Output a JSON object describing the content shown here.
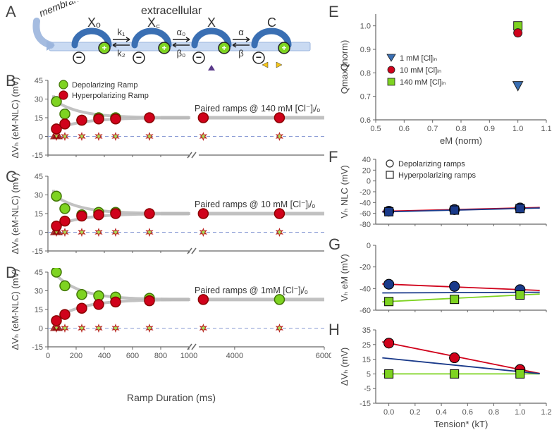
{
  "labels": {
    "A": "A",
    "B": "B",
    "C": "C",
    "D": "D",
    "E": "E",
    "F": "F",
    "G": "G",
    "H": "H"
  },
  "panelA": {
    "membrane_label": "membrane",
    "extracellular_label": "extracellular",
    "states": [
      "Xₒ",
      "X꜀",
      "X",
      "C"
    ],
    "rates": [
      "k₁",
      "k₂",
      "α₀",
      "β₀",
      "α",
      "β"
    ],
    "membrane_color": "#3a6fb3",
    "pos_charge": "+",
    "neg_charge": "−",
    "channel_fill": "#c9daf2"
  },
  "panelsBCD": {
    "y_label": "ΔVₕ (eM-NLC) (mV)",
    "y_range": [
      -15,
      45
    ],
    "y_ticks": [
      -15,
      0,
      15,
      30,
      45
    ],
    "x_range_left": [
      0,
      1000
    ],
    "x_break": [
      1000,
      3200
    ],
    "x_range_right": [
      3200,
      6000
    ],
    "x_ticks_left": [
      0,
      200,
      400,
      600,
      800,
      1000
    ],
    "x_ticks_right": [
      4000,
      6000
    ],
    "x_axis_label": "Ramp Duration (ms)",
    "legend": {
      "dep": "Depolarizing Ramp",
      "hyp": "Hyperpolarizing Ramp"
    },
    "colors": {
      "dep": "#7ed321",
      "dep_stroke": "#417505",
      "hyp": "#d0021b",
      "hyp_stroke": "#8b0000",
      "fit": "#bbbbbb",
      "zero_dash": "#8a9bd4"
    },
    "B": {
      "text": "Paired ramps @ 140 mM [Cl⁻]ᵢ/ₒ",
      "dep_points": [
        [
          60,
          28
        ],
        [
          120,
          18
        ],
        [
          240,
          13
        ],
        [
          360,
          15
        ],
        [
          480,
          15
        ]
      ],
      "hyp_points": [
        [
          60,
          6
        ],
        [
          120,
          10
        ],
        [
          240,
          13
        ],
        [
          360,
          14
        ],
        [
          480,
          14
        ],
        [
          720,
          15
        ],
        [
          3300,
          15
        ],
        [
          5000,
          15
        ]
      ],
      "asymptote": 15,
      "star_x": [
        60,
        120,
        240,
        360,
        480,
        720,
        3300,
        5000
      ]
    },
    "C": {
      "text": "Paired ramps @ 10 mM [Cl⁻]ᵢ/ₒ",
      "dep_points": [
        [
          60,
          29
        ],
        [
          120,
          19
        ],
        [
          240,
          14
        ],
        [
          360,
          16
        ],
        [
          480,
          16
        ]
      ],
      "hyp_points": [
        [
          60,
          5
        ],
        [
          120,
          9
        ],
        [
          240,
          13
        ],
        [
          360,
          14
        ],
        [
          480,
          15
        ],
        [
          720,
          15
        ],
        [
          3300,
          15
        ],
        [
          5000,
          15
        ]
      ],
      "asymptote": 15,
      "star_x": [
        60,
        120,
        240,
        360,
        480,
        720,
        3300,
        5000
      ]
    },
    "D": {
      "text": "Paired ramps @ 1mM [Cl⁻]ᵢ/ₒ",
      "dep_points": [
        [
          60,
          45
        ],
        [
          120,
          34
        ],
        [
          240,
          27
        ],
        [
          360,
          26
        ],
        [
          480,
          25
        ],
        [
          720,
          24
        ]
      ],
      "hyp_points": [
        [
          60,
          6
        ],
        [
          120,
          11
        ],
        [
          240,
          16
        ],
        [
          360,
          19
        ],
        [
          480,
          21
        ],
        [
          720,
          22
        ],
        [
          3300,
          23
        ]
      ],
      "dep_right": [
        [
          5000,
          23
        ]
      ],
      "asymptote": 23,
      "star_x": [
        60,
        120,
        240,
        360,
        480,
        720,
        3300,
        5000
      ]
    }
  },
  "panelE": {
    "y_label": "Qmax (norm)",
    "x_label": "eM (norm)",
    "y_range": [
      0.6,
      1.05
    ],
    "y_ticks": [
      0.6,
      0.7,
      0.8,
      0.9,
      1.0
    ],
    "x_range": [
      0.5,
      1.1
    ],
    "x_ticks": [
      0.5,
      0.6,
      0.7,
      0.8,
      0.9,
      1.0,
      1.1
    ],
    "legend": [
      {
        "label": "1 mM [Cl]ᵢₙ",
        "marker": "tri",
        "color": "#3a6fb3"
      },
      {
        "label": "10 mM [Cl]ᵢₙ",
        "marker": "circle",
        "color": "#d0021b"
      },
      {
        "label": "140 mM [Cl]ᵢₙ",
        "marker": "square",
        "color": "#7ed321"
      }
    ],
    "points_tri": [
      [
        1.0,
        0.745
      ]
    ],
    "points_circ": [
      [
        1.0,
        0.97
      ]
    ],
    "points_sq": [
      [
        1.0,
        1.0
      ]
    ]
  },
  "panelsFGH": {
    "x_label": "Tension* (kT)",
    "x_range": [
      -0.1,
      1.2
    ],
    "x_ticks": [
      0.0,
      0.2,
      0.4,
      0.6,
      0.8,
      1.0,
      1.2
    ],
    "legend": [
      {
        "label": "Depolarizing ramps",
        "marker": "circle"
      },
      {
        "label": "Hyperpolarizing ramps",
        "marker": "square"
      }
    ],
    "F": {
      "y_label": "Vₕ NLC (mV)",
      "y_range": [
        -80,
        40
      ],
      "y_ticks": [
        -80,
        -60,
        -40,
        -20,
        0,
        20,
        40
      ],
      "dep": [
        [
          0,
          -56
        ],
        [
          0.5,
          -53
        ],
        [
          1.0,
          -50
        ]
      ],
      "hyp": [
        [
          0,
          -57
        ],
        [
          0.5,
          -54
        ],
        [
          1.0,
          -51
        ]
      ],
      "colors": {
        "dep": "#d0021b",
        "hyp": "#1a3a8a"
      }
    },
    "G": {
      "y_label": "Vₕ eM (mV)",
      "y_range": [
        -60,
        0
      ],
      "y_ticks": [
        -60,
        -40,
        -20,
        0
      ],
      "dep": [
        [
          0,
          -36
        ],
        [
          0.5,
          -38
        ],
        [
          1.0,
          -41
        ]
      ],
      "hyp": [
        [
          0,
          -52
        ],
        [
          0.5,
          -50
        ],
        [
          1.0,
          -46
        ]
      ],
      "colors": {
        "dep": "#d0021b",
        "hyp": "#7ed321",
        "mid": "#1a3a8a"
      }
    },
    "H": {
      "y_label": "ΔVₕ (mV)",
      "y_range": [
        -15,
        35
      ],
      "y_ticks": [
        -15,
        -5,
        5,
        15,
        25,
        35
      ],
      "dep": [
        [
          0,
          26
        ],
        [
          0.5,
          16
        ],
        [
          1.0,
          8
        ]
      ],
      "hyp": [
        [
          0,
          5
        ],
        [
          0.5,
          5
        ],
        [
          1.0,
          5
        ]
      ],
      "colors": {
        "dep": "#d0021b",
        "hyp": "#7ed321",
        "mid": "#1a3a8a"
      }
    }
  },
  "styling": {
    "axis_color": "#666666",
    "tick_font_size": 11,
    "label_font_size": 14,
    "panel_label_font_size": 22
  }
}
